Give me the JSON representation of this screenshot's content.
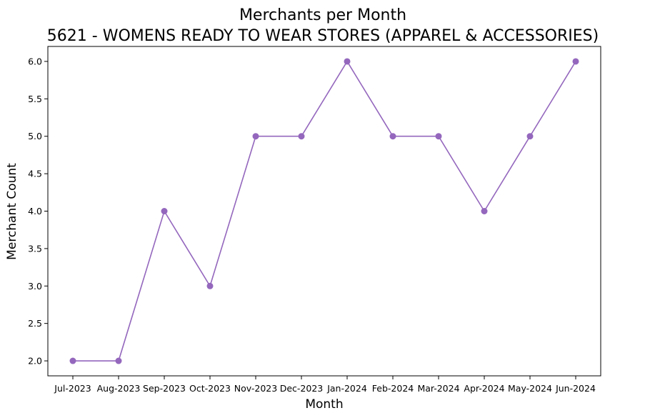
{
  "chart_data": {
    "type": "line",
    "title": "Merchants per Month",
    "subtitle": "5621 - WOMENS READY TO WEAR STORES (APPAREL & ACCESSORIES)",
    "xlabel": "Month",
    "ylabel": "Merchant Count",
    "categories": [
      "Jul-2023",
      "Aug-2023",
      "Sep-2023",
      "Oct-2023",
      "Nov-2023",
      "Dec-2023",
      "Jan-2024",
      "Feb-2024",
      "Mar-2024",
      "Apr-2024",
      "May-2024",
      "Jun-2024"
    ],
    "series": [
      {
        "values": [
          2,
          2,
          4,
          3,
          5,
          5,
          6,
          5,
          5,
          4,
          5,
          6
        ],
        "color": "#9467bd",
        "marker": "circle"
      }
    ],
    "ylim": [
      1.8,
      6.2
    ],
    "yticks": [
      2.0,
      2.5,
      3.0,
      3.5,
      4.0,
      4.5,
      5.0,
      5.5,
      6.0
    ],
    "yticks_labels": [
      "2.0",
      "2.5",
      "3.0",
      "3.5",
      "4.0",
      "4.5",
      "5.0",
      "5.5",
      "6.0"
    ],
    "grid": false,
    "legend": "none"
  }
}
